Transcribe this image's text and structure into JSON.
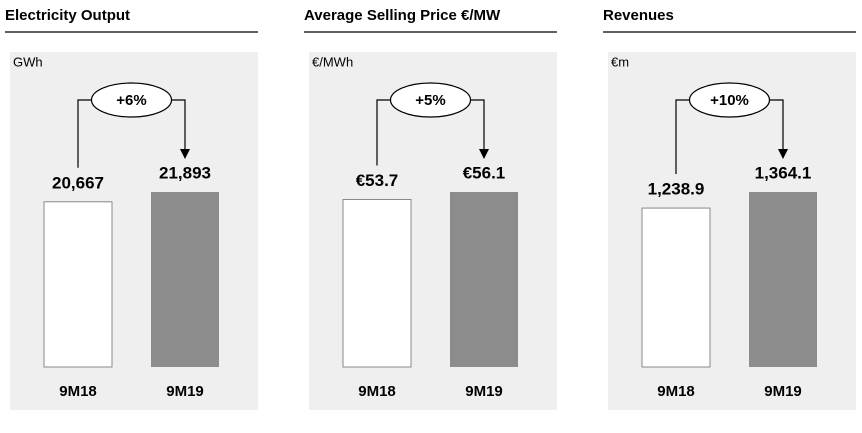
{
  "chart_data": [
    {
      "type": "bar",
      "title": "Electricity Output",
      "unit": "GWh",
      "categories": [
        "9M18",
        "9M19"
      ],
      "values": [
        20667,
        21893
      ],
      "value_labels": [
        "20,667",
        "21,893"
      ],
      "annotation": "+6%",
      "colors": [
        "#ffffff",
        "#8c8c8c"
      ]
    },
    {
      "type": "bar",
      "title": "Average Selling Price €/MW",
      "unit": "€/MWh",
      "categories": [
        "9M18",
        "9M19"
      ],
      "values": [
        53.7,
        56.1
      ],
      "value_labels": [
        "€53.7",
        "€56.1"
      ],
      "annotation": "+5%",
      "colors": [
        "#ffffff",
        "#8c8c8c"
      ]
    },
    {
      "type": "bar",
      "title": "Revenues",
      "unit": "€m",
      "categories": [
        "9M18",
        "9M19"
      ],
      "values": [
        1238.9,
        1364.1
      ],
      "value_labels": [
        "1,238.9",
        "1,364.1"
      ],
      "annotation": "+10%",
      "colors": [
        "#ffffff",
        "#8c8c8c"
      ]
    }
  ]
}
